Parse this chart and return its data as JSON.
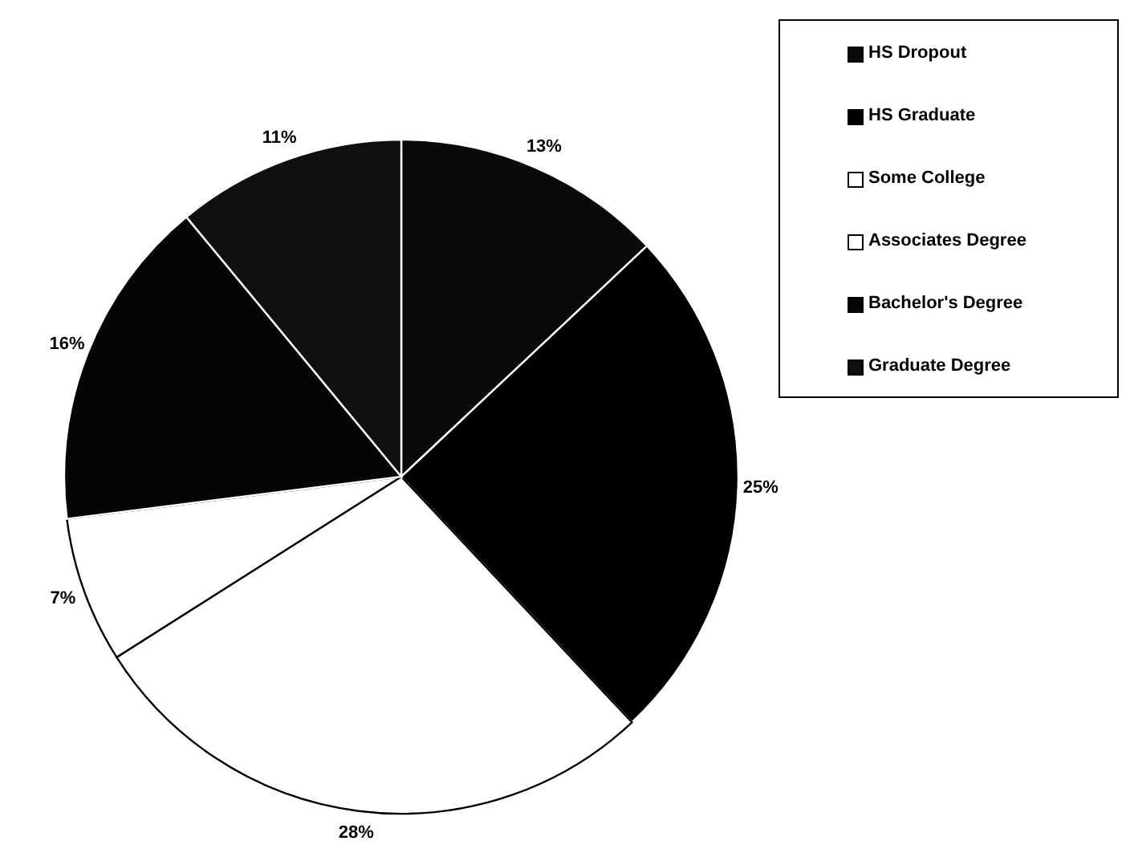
{
  "chart_data": {
    "type": "pie",
    "categories": [
      "HS Dropout",
      "HS Graduate",
      "Some College",
      "Associates Degree",
      "Bachelor's Degree",
      "Graduate Degree"
    ],
    "values": [
      13,
      25,
      28,
      7,
      16,
      11
    ],
    "colors": [
      "#0a0a0a",
      "#000000",
      "#ffffff",
      "#ffffff",
      "#050505",
      "#0f0f0f"
    ],
    "value_labels": [
      "13%",
      "25%",
      "28%",
      "7%",
      "16%",
      "11%"
    ],
    "legend": "top right"
  }
}
